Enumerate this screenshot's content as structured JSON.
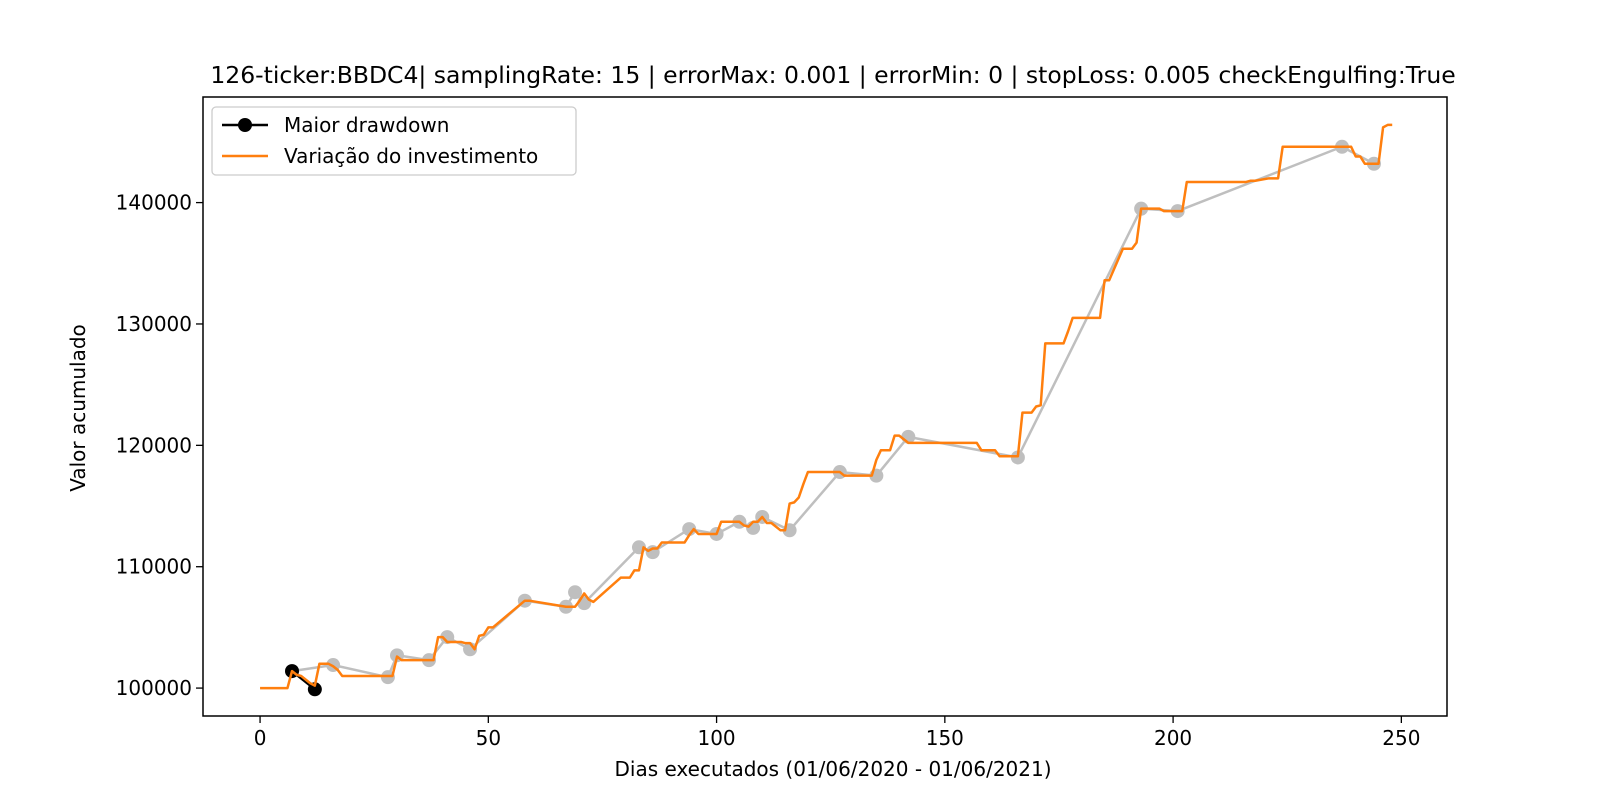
{
  "chart_data": {
    "type": "line",
    "title": "126-ticker:BBDC4| samplingRate: 15 | errorMax: 0.001 | errorMin: 0 | stopLoss: 0.005 checkEngulfing:True",
    "xlabel": "Dias executados (01/06/2020 - 01/06/2021)",
    "ylabel": "Valor acumulado",
    "xlim": [
      -12.5,
      260
    ],
    "ylim": [
      97700,
      148700
    ],
    "xticks": [
      0,
      50,
      100,
      150,
      200,
      250
    ],
    "yticks": [
      100000,
      110000,
      120000,
      130000,
      140000
    ],
    "grid": false,
    "legend_placement": "upper-left",
    "colors": {
      "investment": "#ff7f0e",
      "drawdown": "#000000",
      "pivots": "#bfbfbf"
    },
    "series": [
      {
        "name": "Maior drawdown",
        "role": "drawdown",
        "x": [
          7,
          12
        ],
        "y": [
          101400,
          99900
        ]
      },
      {
        "name": "Variação do investimento",
        "role": "investment",
        "x": [
          0,
          5,
          6,
          7,
          8,
          9,
          10,
          11,
          12,
          13,
          14,
          15,
          16,
          17,
          18,
          19,
          26,
          27,
          28,
          29,
          30,
          31,
          35,
          36,
          37,
          38,
          39,
          40,
          41,
          44,
          45,
          46,
          47,
          48,
          49,
          50,
          51,
          58,
          59,
          67,
          68,
          69,
          70,
          71,
          72,
          73,
          79,
          80,
          81,
          82,
          83,
          84,
          85,
          86,
          87,
          88,
          92,
          93,
          94,
          95,
          96,
          97,
          98,
          99,
          100,
          101,
          102,
          104,
          105,
          106,
          107,
          108,
          109,
          110,
          111,
          112,
          113,
          114,
          115,
          116,
          117,
          118,
          119,
          120,
          121,
          126,
          127,
          128,
          133,
          134,
          135,
          136,
          137,
          138,
          139,
          140,
          141,
          142,
          143,
          144,
          155,
          156,
          157,
          158,
          159,
          160,
          161,
          162,
          163,
          164,
          165,
          166,
          167,
          168,
          169,
          170,
          171,
          172,
          175,
          176,
          177,
          178,
          183,
          184,
          185,
          186,
          189,
          190,
          191,
          192,
          193,
          197,
          198,
          200,
          201,
          202,
          203,
          215,
          216,
          217,
          218,
          221,
          222,
          223,
          224,
          236,
          237,
          238,
          239,
          240,
          241,
          242,
          243,
          244,
          245,
          246,
          247,
          248
        ],
        "y": [
          100000,
          100000,
          100000,
          101400,
          101100,
          101000,
          100700,
          100400,
          100200,
          102000,
          102000,
          102000,
          101800,
          101500,
          101000,
          101000,
          101000,
          101000,
          101000,
          101000,
          102600,
          102300,
          102300,
          102300,
          102300,
          102300,
          104200,
          104200,
          103800,
          103800,
          103700,
          103700,
          103200,
          104300,
          104400,
          105000,
          105000,
          107200,
          107200,
          106700,
          106700,
          106700,
          107200,
          107800,
          107300,
          107100,
          109100,
          109100,
          109100,
          109700,
          109700,
          111600,
          111300,
          111500,
          111500,
          112000,
          112000,
          112000,
          112600,
          113100,
          112700,
          112700,
          112700,
          112700,
          112700,
          113700,
          113700,
          113700,
          113700,
          113400,
          113300,
          113700,
          113700,
          114100,
          113600,
          113600,
          113300,
          113000,
          113000,
          115200,
          115300,
          115700,
          116800,
          117800,
          117800,
          117800,
          117800,
          117500,
          117500,
          117500,
          118800,
          119600,
          119600,
          119600,
          120800,
          120800,
          120500,
          120200,
          120200,
          120200,
          120200,
          120200,
          120200,
          119600,
          119600,
          119600,
          119600,
          119100,
          119100,
          119100,
          119100,
          119100,
          122700,
          122700,
          122700,
          123200,
          123300,
          128400,
          128400,
          128400,
          129400,
          130500,
          130500,
          130500,
          133600,
          133600,
          136200,
          136200,
          136200,
          136700,
          139500,
          139500,
          139300,
          139300,
          139300,
          139300,
          141700,
          141700,
          141700,
          141800,
          141800,
          142000,
          142000,
          142000,
          144600,
          144600,
          144600,
          144600,
          144600,
          143800,
          143800,
          143200,
          143200,
          143200,
          143200,
          146200,
          146400,
          146400
        ]
      },
      {
        "name": "",
        "role": "pivots",
        "x": [
          7,
          16,
          28,
          30,
          37,
          41,
          46,
          58,
          67,
          69,
          71,
          83,
          86,
          94,
          100,
          105,
          108,
          110,
          116,
          127,
          135,
          142,
          166,
          193,
          201,
          237,
          244
        ],
        "y": [
          101400,
          101900,
          100900,
          102700,
          102300,
          104200,
          103200,
          107200,
          106700,
          107900,
          107000,
          111600,
          111200,
          113100,
          112700,
          113700,
          113200,
          114100,
          113000,
          117800,
          117500,
          120700,
          119000,
          139500,
          139300,
          144600,
          143200
        ]
      }
    ]
  }
}
